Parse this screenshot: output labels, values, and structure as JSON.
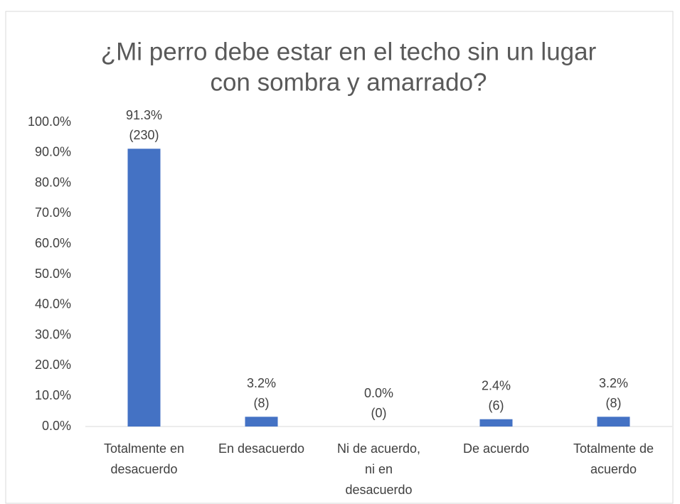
{
  "chart_data": {
    "type": "bar",
    "title": [
      "¿Mi perro debe estar en el techo sin un lugar",
      "con sombra y amarrado?"
    ],
    "categories": [
      [
        "Totalmente en",
        "desacuerdo"
      ],
      [
        "En desacuerdo"
      ],
      [
        "Ni de acuerdo,",
        "ni en",
        "desacuerdo"
      ],
      [
        "De acuerdo"
      ],
      [
        "Totalmente de",
        "acuerdo"
      ]
    ],
    "values": [
      91.3,
      3.2,
      0.0,
      2.4,
      3.2
    ],
    "value_labels": [
      [
        "91.3%",
        "(230)"
      ],
      [
        "3.2%",
        "(8)"
      ],
      [
        "0.0%",
        "(0)"
      ],
      [
        "2.4%",
        "(6)"
      ],
      [
        "3.2%",
        "(8)"
      ]
    ],
    "color": "#4472c4",
    "ylim": [
      0,
      100
    ],
    "yticks": [
      {
        "value": 0,
        "label": "0.0%"
      },
      {
        "value": 10,
        "label": "10.0%"
      },
      {
        "value": 20,
        "label": "20.0%"
      },
      {
        "value": 30,
        "label": "30.0%"
      },
      {
        "value": 40,
        "label": "40.0%"
      },
      {
        "value": 50,
        "label": "50.0%"
      },
      {
        "value": 60,
        "label": "60.0%"
      },
      {
        "value": 70,
        "label": "70.0%"
      },
      {
        "value": 80,
        "label": "80.0%"
      },
      {
        "value": 90,
        "label": "90.0%"
      },
      {
        "value": 100,
        "label": "100.0%"
      }
    ],
    "grid": false
  }
}
